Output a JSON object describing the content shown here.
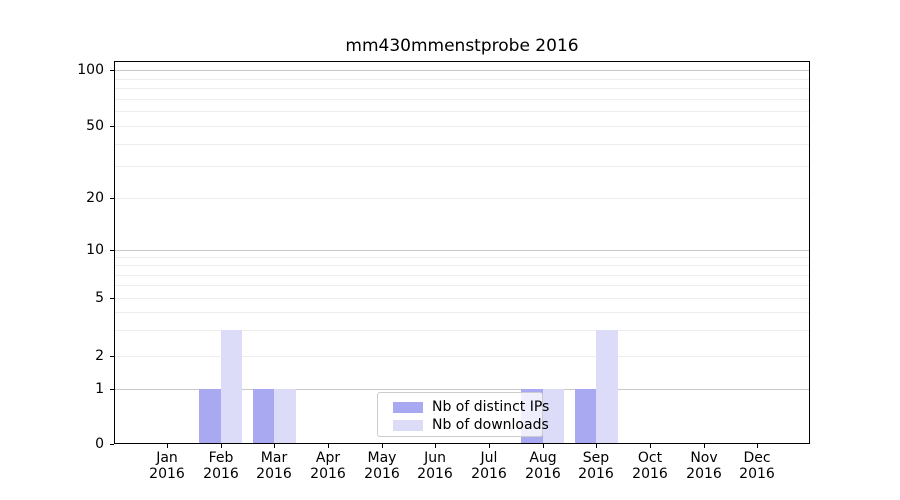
{
  "chart_data": {
    "type": "bar",
    "title": "mm430mmenstprobe 2016",
    "categories": [
      "Jan",
      "Feb",
      "Mar",
      "Apr",
      "May",
      "Jun",
      "Jul",
      "Aug",
      "Sep",
      "Oct",
      "Nov",
      "Dec"
    ],
    "x_year_label": "2016",
    "series": [
      {
        "name": "Nb of distinct IPs",
        "color": "#a9a9f2",
        "values": [
          0,
          1,
          1,
          0,
          0,
          0,
          0,
          1,
          1,
          0,
          0,
          0
        ]
      },
      {
        "name": "Nb of downloads",
        "color": "#dcdcf8",
        "values": [
          0,
          3,
          1,
          0,
          0,
          0,
          0,
          1,
          3,
          0,
          0,
          0
        ]
      }
    ],
    "ylabel": "",
    "xlabel": "",
    "ytick_values": [
      0,
      1,
      2,
      5,
      10,
      20,
      50,
      100
    ],
    "major_gridline_values": [
      1,
      10,
      100
    ],
    "minor_gridline_values": [
      2,
      3,
      4,
      5,
      6,
      7,
      8,
      9,
      20,
      30,
      40,
      50,
      60,
      70,
      80,
      90
    ],
    "ylim": [
      0,
      100
    ],
    "yscale": "log-like (linear 0-1, log above)",
    "grid": "on",
    "legend_position": "lower center",
    "colors": {
      "distinct_ips": "#a9a9f2",
      "downloads": "#dcdcf8",
      "major_grid": "#c8c8c8",
      "minor_grid": "#ededed",
      "spine": "#000000"
    }
  }
}
